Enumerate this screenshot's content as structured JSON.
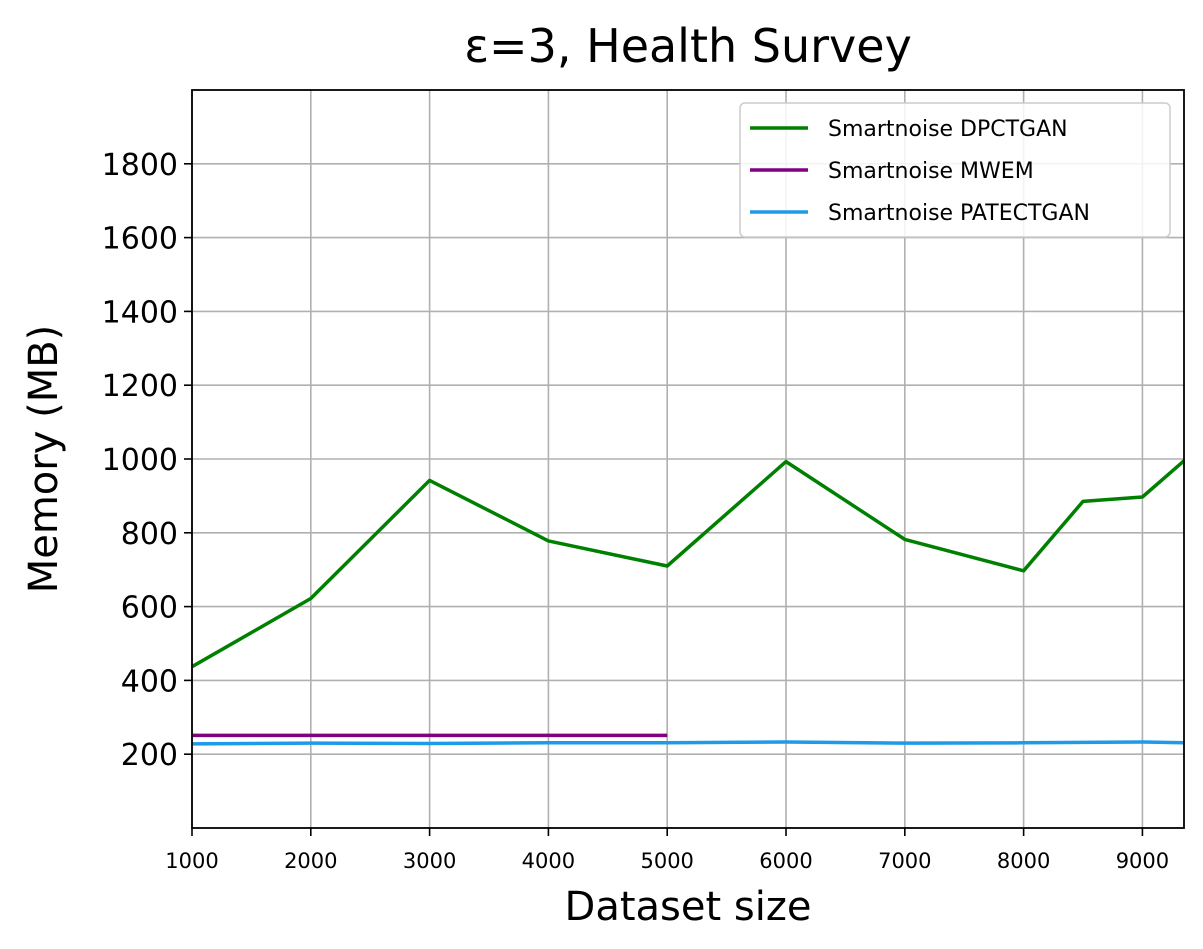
{
  "chart_data": {
    "type": "line",
    "title": "ε=3, Health Survey",
    "xlabel": "Dataset size",
    "ylabel": "Memory (MB)",
    "xlim": [
      1000,
      9350
    ],
    "ylim": [
      0,
      2000
    ],
    "xticks": [
      1000,
      2000,
      3000,
      4000,
      5000,
      6000,
      7000,
      8000,
      9000
    ],
    "yticks": [
      200,
      400,
      600,
      800,
      1000,
      1200,
      1400,
      1600,
      1800
    ],
    "grid": true,
    "legend_position": "top-right",
    "series": [
      {
        "name": "Smartnoise DPCTGAN",
        "color": "#008000",
        "x": [
          1000,
          2000,
          3000,
          4000,
          5000,
          6000,
          7000,
          8000,
          8500,
          9000,
          9350
        ],
        "y": [
          437,
          622,
          942,
          778,
          710,
          993,
          782,
          697,
          885,
          897,
          995
        ]
      },
      {
        "name": "Smartnoise MWEM",
        "color": "#800080",
        "x": [
          1000,
          2000,
          3000,
          4000,
          5000
        ],
        "y": [
          251,
          251,
          251,
          251,
          251
        ]
      },
      {
        "name": "Smartnoise PATECTGAN",
        "color": "#1f9ae8",
        "x": [
          1000,
          2000,
          3000,
          4000,
          5000,
          6000,
          7000,
          8000,
          9000,
          9350
        ],
        "y": [
          228,
          230,
          229,
          231,
          231,
          233,
          230,
          231,
          233,
          231
        ]
      }
    ]
  }
}
